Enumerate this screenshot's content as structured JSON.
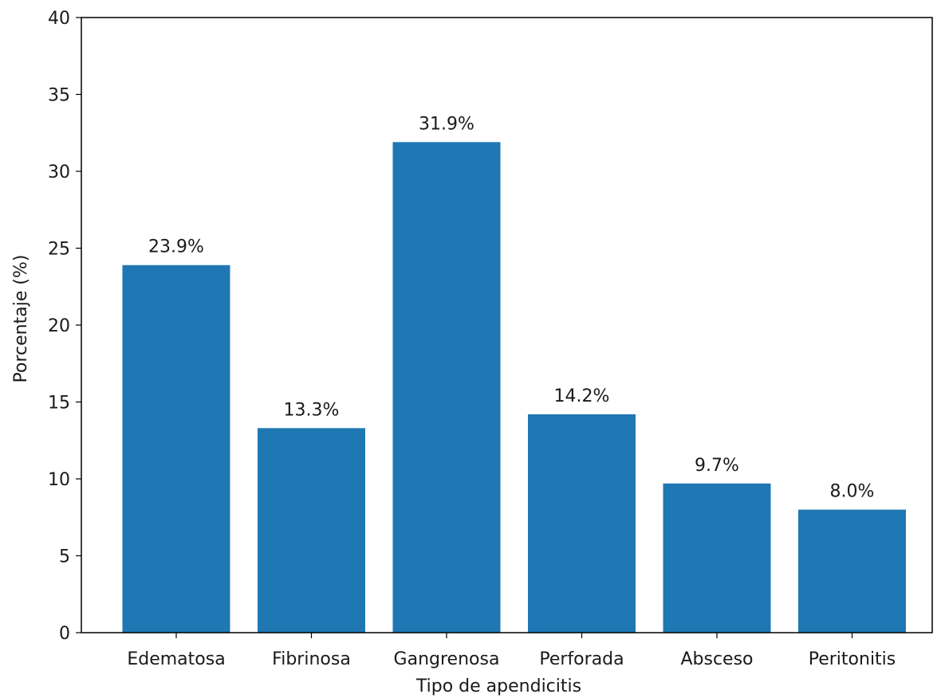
{
  "chart_data": {
    "type": "bar",
    "categories": [
      "Edematosa",
      "Fibrinosa",
      "Gangrenosa",
      "Perforada",
      "Absceso",
      "Peritonitis"
    ],
    "values": [
      23.9,
      13.3,
      31.9,
      14.2,
      9.7,
      8.0
    ],
    "data_labels": [
      "23.9%",
      "13.3%",
      "31.9%",
      "14.2%",
      "9.7%",
      "8.0%"
    ],
    "title": "",
    "xlabel": "Tipo de apendicitis",
    "ylabel": "Porcentaje (%)",
    "ylim": [
      0,
      40
    ],
    "yticks": [
      "0",
      "5",
      "10",
      "15",
      "20",
      "25",
      "30",
      "35",
      "40"
    ],
    "grid": false,
    "bar_color": "#1f77b4"
  }
}
